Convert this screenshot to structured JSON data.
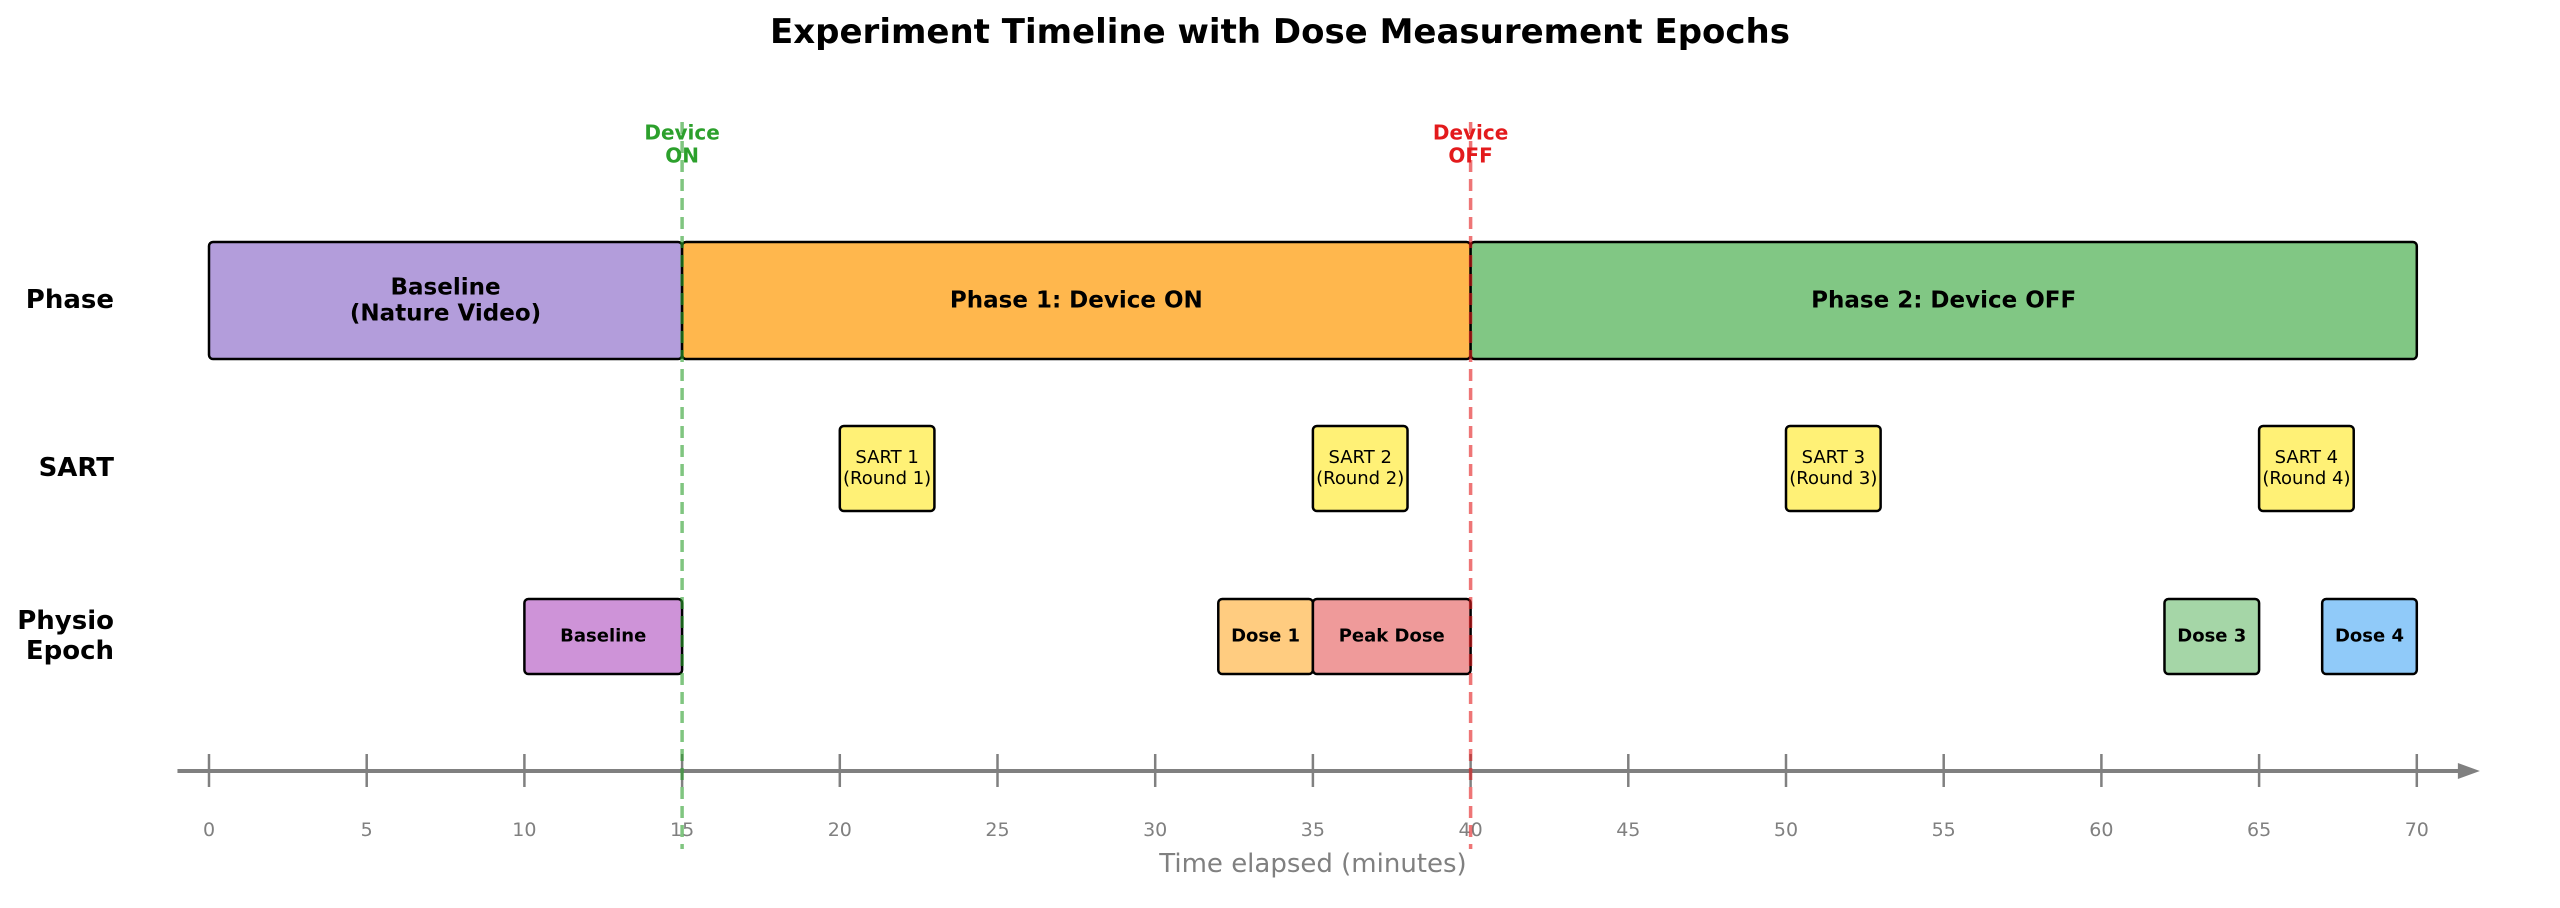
{
  "chart_data": {
    "type": "timeline",
    "title": "Experiment Timeline with Dose Measurement Epochs",
    "xlabel": "Time elapsed (minutes)",
    "xlim": [
      -1,
      72
    ],
    "xticks": [
      0,
      5,
      10,
      15,
      20,
      25,
      30,
      35,
      40,
      45,
      50,
      55,
      60,
      65,
      70
    ],
    "rows": [
      {
        "name": "Phase",
        "tasks": [
          {
            "label": "Baseline\n(Nature Video)",
            "start": 0,
            "end": 15,
            "color": "#b39ddb"
          },
          {
            "label": "Phase 1: Device ON",
            "start": 15,
            "end": 40,
            "color": "#ffb74d"
          },
          {
            "label": "Phase 2: Device OFF",
            "start": 40,
            "end": 70,
            "color": "#81c784"
          }
        ]
      },
      {
        "name": "SART",
        "tasks": [
          {
            "label": "SART 1\n(Round 1)",
            "start": 20,
            "end": 23,
            "color": "#fff176"
          },
          {
            "label": "SART 2\n(Round 2)",
            "start": 35,
            "end": 38,
            "color": "#fff176"
          },
          {
            "label": "SART 3\n(Round 3)",
            "start": 50,
            "end": 53,
            "color": "#fff176"
          },
          {
            "label": "SART 4\n(Round 4)",
            "start": 65,
            "end": 68,
            "color": "#fff176"
          }
        ]
      },
      {
        "name": "Physio\nEpoch",
        "tasks": [
          {
            "label": "Baseline",
            "start": 10,
            "end": 15,
            "color": "#ce93d8"
          },
          {
            "label": "Dose 1",
            "start": 32,
            "end": 35,
            "color": "#ffcc80"
          },
          {
            "label": "Peak Dose",
            "start": 35,
            "end": 40,
            "color": "#ef9a9a"
          },
          {
            "label": "Dose 3",
            "start": 62,
            "end": 65,
            "color": "#a5d6a7"
          },
          {
            "label": "Dose 4",
            "start": 67,
            "end": 70,
            "color": "#90caf9"
          }
        ]
      }
    ],
    "markers": [
      {
        "x": 15,
        "label": "Device\nON",
        "color": "#2ca02c"
      },
      {
        "x": 40,
        "label": "Device\nOFF",
        "color": "#e31a1c"
      }
    ]
  }
}
